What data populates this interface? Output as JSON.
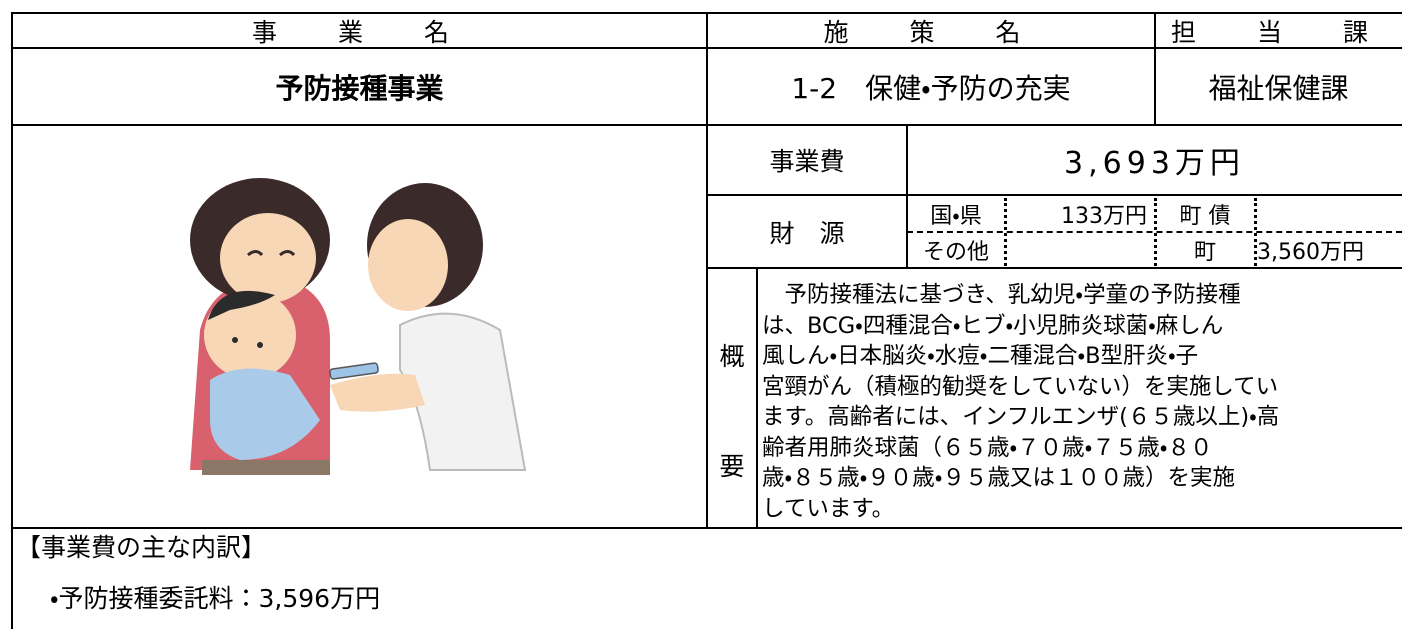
{
  "header": {
    "project_name_label": "事　業　名",
    "policy_name_label": "施　策　名",
    "department_label": "担　当　課"
  },
  "project": {
    "name": "予防接種事業",
    "policy": "1-2　保健・予防の充実",
    "department": "福祉保健課"
  },
  "cost": {
    "label": "事業費",
    "value": "3,693万円"
  },
  "funding": {
    "label": "財　源",
    "national_prefectural_label": "国・県",
    "national_prefectural_value": "133万円",
    "town_bond_label": "町 債",
    "other_label": "その他",
    "town_label": "町",
    "town_value": "3,560万円"
  },
  "summary": {
    "label_top": "概",
    "label_bottom": "要",
    "lines": [
      "　予防接種法に基づき、乳幼児・学童の予防接種",
      "は、BCG・四種混合・ヒブ・小児肺炎球菌・麻しん",
      "風しん・日本脳炎・水痘・二種混合・B型肝炎・子",
      "宮頸がん（積極的勧奨をしていない）を実施してい",
      "ます。高齢者には、インフルエンザ(６５歳以上)・高",
      "齢者用肺炎球菌（６５歳・７０歳・７５歳・８０",
      "歳・８５歳・９０歳・９５歳又は１００歳）を実施",
      "しています。"
    ]
  },
  "breakdown": {
    "title": "【事業費の主な内訳】",
    "items": [
      "・予防接種委託料：3,596万円"
    ]
  }
}
